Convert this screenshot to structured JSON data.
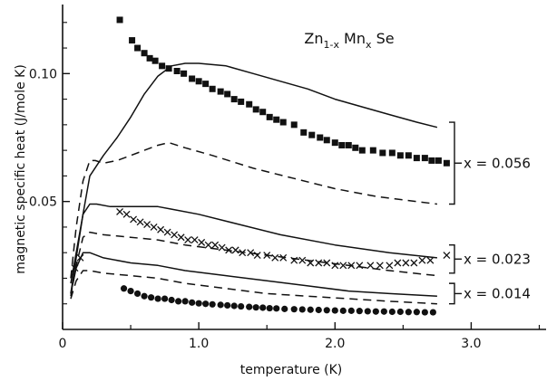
{
  "chart_data": {
    "type": "scatter",
    "title": "",
    "xlabel": "temperature  (K)",
    "ylabel": "magnetic specific heat  (J/mole K)",
    "xlim": [
      0,
      3.55
    ],
    "ylim": [
      0,
      0.127
    ],
    "x_ticks": [
      0,
      1.0,
      2.0,
      3.0
    ],
    "x_tick_labels": [
      "0",
      "1.0",
      "2.0",
      "3.0"
    ],
    "y_ticks": [
      0.05,
      0.1
    ],
    "y_tick_labels": [
      "0.05",
      "0.10"
    ],
    "compound_label": {
      "base": "Zn",
      "sub1": "1-x",
      "mid": " Mn",
      "sub2": "x",
      "end": " Se"
    },
    "groups": [
      {
        "label": "x = 0.056"
      },
      {
        "label": "x = 0.023"
      },
      {
        "label": "x = 0.014"
      }
    ],
    "series": [
      {
        "marker": "square",
        "group": "x = 0.056",
        "x": [
          0.42,
          0.51,
          0.55,
          0.6,
          0.64,
          0.68,
          0.73,
          0.78,
          0.84,
          0.89,
          0.95,
          1.0,
          1.05,
          1.1,
          1.16,
          1.21,
          1.26,
          1.31,
          1.37,
          1.42,
          1.47,
          1.52,
          1.57,
          1.62,
          1.7,
          1.77,
          1.83,
          1.89,
          1.94,
          2.0,
          2.05,
          2.1,
          2.15,
          2.2,
          2.28,
          2.35,
          2.42,
          2.48,
          2.54,
          2.6,
          2.66,
          2.71,
          2.76,
          2.82
        ],
        "y": [
          0.121,
          0.113,
          0.11,
          0.108,
          0.106,
          0.105,
          0.103,
          0.102,
          0.101,
          0.1,
          0.098,
          0.097,
          0.096,
          0.094,
          0.093,
          0.092,
          0.09,
          0.089,
          0.088,
          0.086,
          0.085,
          0.083,
          0.082,
          0.081,
          0.08,
          0.077,
          0.076,
          0.075,
          0.074,
          0.073,
          0.072,
          0.072,
          0.071,
          0.07,
          0.07,
          0.069,
          0.069,
          0.068,
          0.068,
          0.067,
          0.067,
          0.066,
          0.066,
          0.065
        ]
      },
      {
        "marker": "cross",
        "group": "x = 0.023",
        "x": [
          0.09,
          0.13,
          0.42,
          0.47,
          0.52,
          0.57,
          0.62,
          0.67,
          0.72,
          0.77,
          0.82,
          0.87,
          0.92,
          0.97,
          1.02,
          1.07,
          1.12,
          1.17,
          1.22,
          1.27,
          1.32,
          1.38,
          1.43,
          1.5,
          1.56,
          1.62,
          1.7,
          1.76,
          1.82,
          1.88,
          1.94,
          2.0,
          2.06,
          2.12,
          2.18,
          2.26,
          2.33,
          2.4,
          2.46,
          2.52,
          2.58,
          2.64,
          2.7,
          2.82
        ],
        "y": [
          0.024,
          0.028,
          0.046,
          0.045,
          0.043,
          0.042,
          0.041,
          0.04,
          0.039,
          0.038,
          0.037,
          0.036,
          0.035,
          0.035,
          0.034,
          0.033,
          0.033,
          0.032,
          0.031,
          0.031,
          0.03,
          0.03,
          0.029,
          0.029,
          0.028,
          0.028,
          0.027,
          0.027,
          0.026,
          0.026,
          0.026,
          0.025,
          0.025,
          0.025,
          0.025,
          0.025,
          0.025,
          0.025,
          0.026,
          0.026,
          0.026,
          0.027,
          0.027,
          0.029
        ]
      },
      {
        "marker": "circle",
        "group": "x = 0.014",
        "x": [
          0.45,
          0.5,
          0.55,
          0.6,
          0.65,
          0.7,
          0.75,
          0.8,
          0.85,
          0.9,
          0.95,
          1.0,
          1.05,
          1.1,
          1.16,
          1.21,
          1.26,
          1.31,
          1.37,
          1.42,
          1.47,
          1.52,
          1.57,
          1.63,
          1.7,
          1.76,
          1.82,
          1.88,
          1.94,
          2.0,
          2.06,
          2.12,
          2.18,
          2.24,
          2.3,
          2.36,
          2.42,
          2.48,
          2.54,
          2.6,
          2.66,
          2.72
        ],
        "y": [
          0.016,
          0.015,
          0.014,
          0.013,
          0.0125,
          0.012,
          0.012,
          0.0115,
          0.011,
          0.011,
          0.0105,
          0.0102,
          0.01,
          0.0098,
          0.0096,
          0.0094,
          0.0092,
          0.009,
          0.0088,
          0.0086,
          0.0085,
          0.0083,
          0.0082,
          0.008,
          0.0079,
          0.0078,
          0.0077,
          0.0076,
          0.0075,
          0.0074,
          0.0073,
          0.0073,
          0.0072,
          0.0071,
          0.007,
          0.007,
          0.0069,
          0.0069,
          0.0068,
          0.0068,
          0.0067,
          0.0067
        ]
      },
      {
        "style": "solid",
        "group": "x = 0.056",
        "x": [
          0.06,
          0.1,
          0.15,
          0.2,
          0.3,
          0.4,
          0.5,
          0.6,
          0.7,
          0.8,
          0.9,
          1.0,
          1.2,
          1.4,
          1.6,
          1.8,
          2.0,
          2.2,
          2.4,
          2.6,
          2.75
        ],
        "y": [
          0.018,
          0.03,
          0.045,
          0.06,
          0.068,
          0.075,
          0.083,
          0.092,
          0.099,
          0.103,
          0.104,
          0.104,
          0.103,
          0.1,
          0.097,
          0.094,
          0.09,
          0.087,
          0.084,
          0.081,
          0.079
        ]
      },
      {
        "style": "dashed",
        "group": "x = 0.056",
        "x": [
          0.06,
          0.1,
          0.15,
          0.2,
          0.24,
          0.3,
          0.4,
          0.5,
          0.6,
          0.7,
          0.78,
          0.9,
          1.1,
          1.4,
          1.7,
          2.0,
          2.3,
          2.6,
          2.75
        ],
        "y": [
          0.02,
          0.04,
          0.058,
          0.066,
          0.066,
          0.065,
          0.066,
          0.068,
          0.07,
          0.072,
          0.073,
          0.071,
          0.068,
          0.063,
          0.059,
          0.055,
          0.052,
          0.05,
          0.049
        ]
      },
      {
        "style": "solid",
        "group": "x = 0.023",
        "x": [
          0.06,
          0.1,
          0.15,
          0.2,
          0.25,
          0.35,
          0.5,
          0.7,
          0.8,
          1.0,
          1.3,
          1.6,
          2.0,
          2.4,
          2.75
        ],
        "y": [
          0.014,
          0.028,
          0.045,
          0.049,
          0.049,
          0.048,
          0.048,
          0.048,
          0.047,
          0.045,
          0.041,
          0.037,
          0.033,
          0.03,
          0.028
        ]
      },
      {
        "style": "dashed",
        "group": "x = 0.023",
        "x": [
          0.06,
          0.1,
          0.15,
          0.2,
          0.3,
          0.5,
          0.7,
          0.9,
          1.2,
          1.5,
          1.8,
          2.1,
          2.4,
          2.75
        ],
        "y": [
          0.013,
          0.025,
          0.036,
          0.038,
          0.037,
          0.036,
          0.035,
          0.033,
          0.031,
          0.029,
          0.027,
          0.025,
          0.023,
          0.021
        ]
      },
      {
        "style": "solid",
        "group": "x = 0.014",
        "x": [
          0.06,
          0.1,
          0.15,
          0.2,
          0.3,
          0.5,
          0.7,
          0.9,
          1.2,
          1.5,
          1.8,
          2.1,
          2.4,
          2.75
        ],
        "y": [
          0.014,
          0.024,
          0.03,
          0.03,
          0.028,
          0.026,
          0.025,
          0.023,
          0.021,
          0.019,
          0.017,
          0.015,
          0.014,
          0.013
        ]
      },
      {
        "style": "dashed",
        "group": "x = 0.014",
        "x": [
          0.06,
          0.1,
          0.15,
          0.2,
          0.3,
          0.5,
          0.7,
          0.9,
          1.2,
          1.5,
          1.8,
          2.1,
          2.4,
          2.75
        ],
        "y": [
          0.012,
          0.019,
          0.023,
          0.023,
          0.022,
          0.021,
          0.02,
          0.018,
          0.016,
          0.014,
          0.013,
          0.012,
          0.011,
          0.01
        ]
      }
    ]
  }
}
